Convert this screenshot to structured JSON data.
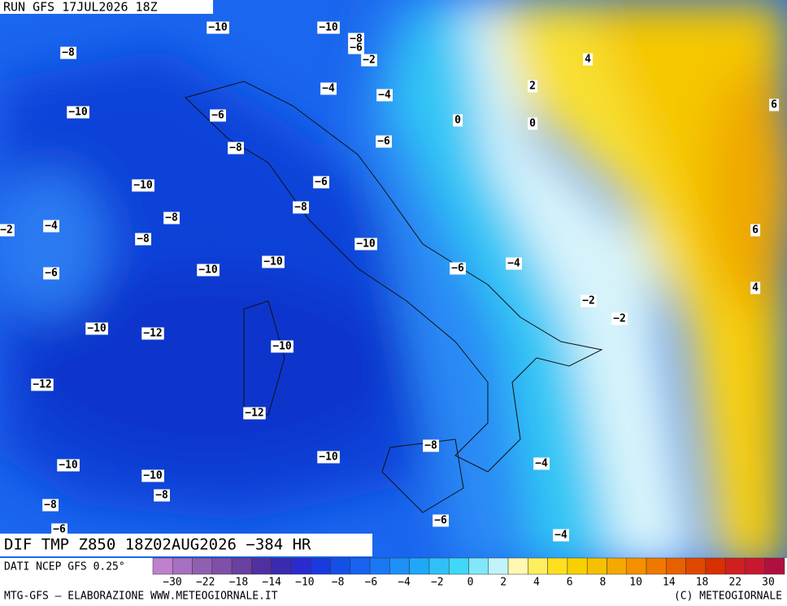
{
  "header": {
    "run": "RUN GFS 17JUL2026 18Z",
    "title": "DIF TMP Z850 18Z02AUG2026 −384 HR",
    "source": "DATI NCEP GFS 0.25°"
  },
  "footer": {
    "left": "MTG-GFS — ELABORAZIONE WWW.METEOGIORNALE.IT",
    "right": "(C) METEOGIORNALE"
  },
  "contour_labels": [
    "−10",
    "−10",
    "−8",
    "−6",
    "−2",
    "4",
    "−8",
    "2",
    "−4",
    "−4",
    "6",
    "−10",
    "−6",
    "0",
    "0",
    "−6",
    "−8",
    "−10",
    "−6",
    "−8",
    "−8",
    "−4",
    "−2",
    "6",
    "−8",
    "−10",
    "−10",
    "−4",
    "−6",
    "−10",
    "−6",
    "4",
    "−2",
    "−2",
    "−10",
    "−12",
    "−10",
    "−12",
    "−12",
    "−8",
    "−10",
    "−10",
    "−4",
    "−10",
    "−8",
    "−8",
    "−6",
    "−6",
    "−4"
  ],
  "colorbar": {
    "ticks": [
      "−30",
      "−22",
      "−18",
      "−14",
      "−10",
      "−8",
      "−6",
      "−4",
      "−2",
      "0",
      "2",
      "4",
      "6",
      "8",
      "10",
      "14",
      "18",
      "22",
      "30"
    ],
    "colors": [
      "#c080d0",
      "#a870c0",
      "#9060b0",
      "#8050a8",
      "#6a40a0",
      "#5030a0",
      "#3a2ab0",
      "#2a2ad0",
      "#1a3ae0",
      "#1450e8",
      "#1a62f0",
      "#1a78f5",
      "#1e90f8",
      "#20a8f8",
      "#30c0f8",
      "#40d8f8",
      "#80e8f8",
      "#c0f4fa",
      "#fff8b0",
      "#ffee60",
      "#ffe020",
      "#f8d000",
      "#f5c000",
      "#f5a800",
      "#f59000",
      "#f07800",
      "#e86000",
      "#e04800",
      "#d83000",
      "#d02020",
      "#c81830",
      "#b01040"
    ]
  }
}
